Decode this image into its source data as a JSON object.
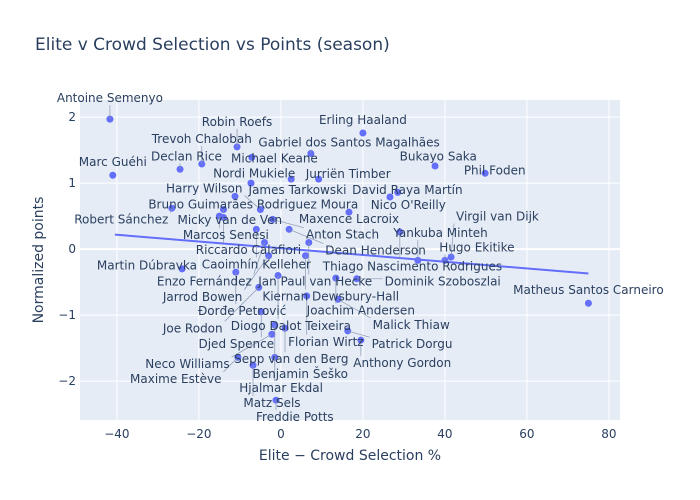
{
  "chart_data": {
    "type": "scatter",
    "title": "Elite v Crowd Selection vs Points (season)",
    "xlabel": "Elite − Crowd Selection %",
    "ylabel": "Normalized points",
    "xlim": [
      -49,
      82.7
    ],
    "ylim": [
      -2.59,
      2.26
    ],
    "xticks": [
      -40,
      -20,
      0,
      20,
      40,
      60,
      80
    ],
    "yticks": [
      -2,
      -1,
      0,
      1,
      2
    ],
    "grid": true,
    "colors": {
      "marker": "#636efa",
      "trend": "#636efa",
      "plot_bg": "#e5ecf6",
      "text": "#2a3f5f"
    },
    "trendline": {
      "x": [
        -40.5,
        75
      ],
      "y": [
        0.22,
        -0.37
      ]
    },
    "points": [
      {
        "label": "Antoine Semenyo",
        "x": -41.7,
        "y": 1.97
      },
      {
        "label": "Marc Guéhi",
        "x": -41,
        "y": 1.12
      },
      {
        "label": "Declan Rice",
        "x": -24.6,
        "y": 1.21
      },
      {
        "label": "Trevoh Chalobah",
        "x": -19.3,
        "y": 1.29
      },
      {
        "label": "Robin Roefs",
        "x": -10.7,
        "y": 1.55
      },
      {
        "label": "Michael Keane",
        "x": -7.1,
        "y": 1.39
      },
      {
        "label": "Gabriel dos Santos Magalhães",
        "x": 7.3,
        "y": 1.45
      },
      {
        "label": "Erling Haaland",
        "x": 20,
        "y": 1.76
      },
      {
        "label": "Bukayo Saka",
        "x": 37.6,
        "y": 1.26
      },
      {
        "label": "Phil Foden",
        "x": 49.8,
        "y": 1.15
      },
      {
        "label": "Nordi Mukiele",
        "x": -7.3,
        "y": 1.0
      },
      {
        "label": "James Tarkowski",
        "x": 2.5,
        "y": 1.06
      },
      {
        "label": "Jurriën Timber",
        "x": 9.2,
        "y": 1.06
      },
      {
        "label": "Bruno Guimarães Rodriguez Moura",
        "x": -11.2,
        "y": 0.8
      },
      {
        "label": "David Raya Martín",
        "x": 28.5,
        "y": 0.86
      },
      {
        "label": "Nico O'Reilly",
        "x": 26.6,
        "y": 0.79
      },
      {
        "label": "Maxence Lacroix",
        "x": 16.6,
        "y": 0.56
      },
      {
        "label": "Micky van de Ven",
        "x": -14,
        "y": 0.6
      },
      {
        "label": "Harry Wilson",
        "x": -5,
        "y": 0.6
      },
      {
        "label": "Robert Sánchez",
        "x": -26.6,
        "y": 0.62
      },
      {
        "label": "Marcos Senesi",
        "x": -15,
        "y": 0.5
      },
      {
        "label": "Riccardo Calafiori",
        "x": -14,
        "y": 0.48
      },
      {
        "label": "Anton Stach",
        "x": -2,
        "y": 0.45
      },
      {
        "label": "Caoimhín Kelleher",
        "x": -6,
        "y": 0.3
      },
      {
        "label": "Dean Henderson",
        "x": 2,
        "y": 0.3
      },
      {
        "label": "Thiago Nascimento Rodrigues",
        "x": 29,
        "y": 0.26
      },
      {
        "label": "Jan Paul van Hecke",
        "x": 6.8,
        "y": 0.1
      },
      {
        "label": "Kiernan Dewsbury-Hall",
        "x": 6,
        "y": -0.1
      },
      {
        "label": "Enzo Fernández",
        "x": -4,
        "y": 0.1
      },
      {
        "label": "Jarrod Bowen",
        "x": -3,
        "y": -0.1
      },
      {
        "label": "Yankuba Minteh",
        "x": 33.4,
        "y": -0.17
      },
      {
        "label": "Hugo Ekitike",
        "x": 40,
        "y": -0.17
      },
      {
        "label": "Virgil van Dijk",
        "x": 41.5,
        "y": -0.12
      },
      {
        "label": "Martin Dúbravka",
        "x": -24.1,
        "y": -0.3
      },
      {
        "label": "Đorđe Petrović",
        "x": -11,
        "y": -0.35
      },
      {
        "label": "Diogo Dalot Teixeira",
        "x": -0.7,
        "y": -0.4
      },
      {
        "label": "Joachim Andersen",
        "x": 13.4,
        "y": -0.44
      },
      {
        "label": "Dominik Szoboszlai",
        "x": 18.5,
        "y": -0.45
      },
      {
        "label": "Florian Wirtz",
        "x": 6.3,
        "y": -0.71
      },
      {
        "label": "Malick Thiaw",
        "x": 13.9,
        "y": -0.76
      },
      {
        "label": "Joe Rodon",
        "x": -5.4,
        "y": -0.58
      },
      {
        "label": "Djed Spence",
        "x": -4.8,
        "y": -0.95
      },
      {
        "label": "Sepp van den Berg",
        "x": 1,
        "y": -1.2
      },
      {
        "label": "Benjamin Šeško",
        "x": -1.5,
        "y": -1.15
      },
      {
        "label": "Patrick Dorgu",
        "x": 16.3,
        "y": -1.24
      },
      {
        "label": "Anthony Gordon",
        "x": 19.5,
        "y": -1.38
      },
      {
        "label": "Neco Williams",
        "x": -2.2,
        "y": -1.29
      },
      {
        "label": "Hjalmar Ekdal",
        "x": -1.5,
        "y": -1.64
      },
      {
        "label": "Maxime Estève",
        "x": -10.5,
        "y": -1.64
      },
      {
        "label": "Matz Sels",
        "x": -6.8,
        "y": -1.76
      },
      {
        "label": "Freddie Potts",
        "x": -1.2,
        "y": -2.29
      },
      {
        "label": "Matheus Santos Carneiro",
        "x": 75,
        "y": -0.82
      }
    ]
  }
}
